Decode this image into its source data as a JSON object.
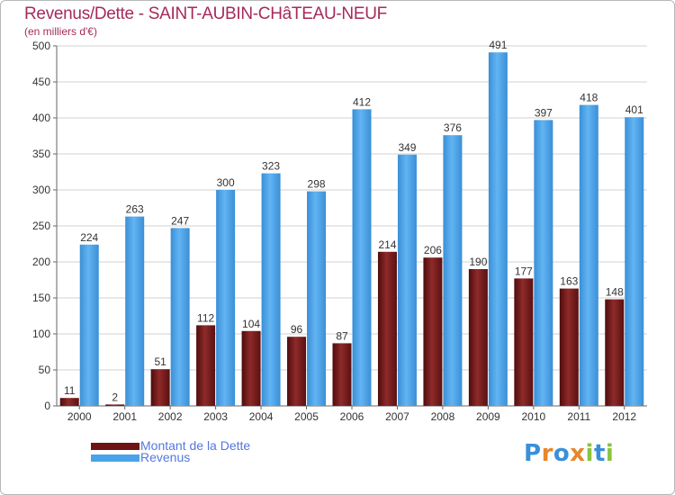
{
  "chart_data": {
    "type": "bar",
    "title": "Revenus/Dette - SAINT-AUBIN-CHâTEAU-NEUF",
    "subtitle": "(en milliers d'€)",
    "xlabel": "",
    "ylabel": "",
    "ylim": [
      0,
      500
    ],
    "yticks": [
      0,
      50,
      100,
      150,
      200,
      250,
      300,
      350,
      400,
      450,
      500
    ],
    "grid": true,
    "categories": [
      "2000",
      "2001",
      "2002",
      "2003",
      "2004",
      "2005",
      "2006",
      "2007",
      "2008",
      "2009",
      "2010",
      "2011",
      "2012"
    ],
    "series": [
      {
        "name": "Montant de la Dette",
        "color": "#7a1c1c",
        "values": [
          11,
          2,
          51,
          112,
          104,
          96,
          87,
          214,
          206,
          190,
          177,
          163,
          148
        ]
      },
      {
        "name": "Revenus",
        "color": "#4aa3e8",
        "values": [
          224,
          263,
          247,
          300,
          323,
          298,
          412,
          349,
          376,
          491,
          397,
          418,
          401
        ]
      }
    ],
    "legend_placement": "bottom-left"
  },
  "logo": {
    "letters": [
      "P",
      "r",
      "o",
      "x",
      "i",
      "t",
      "i"
    ],
    "colors": [
      "#3b8fd9",
      "#e8862a",
      "#3b8fd9",
      "#e8862a",
      "#8ac43f",
      "#3b8fd9",
      "#8ac43f"
    ]
  }
}
